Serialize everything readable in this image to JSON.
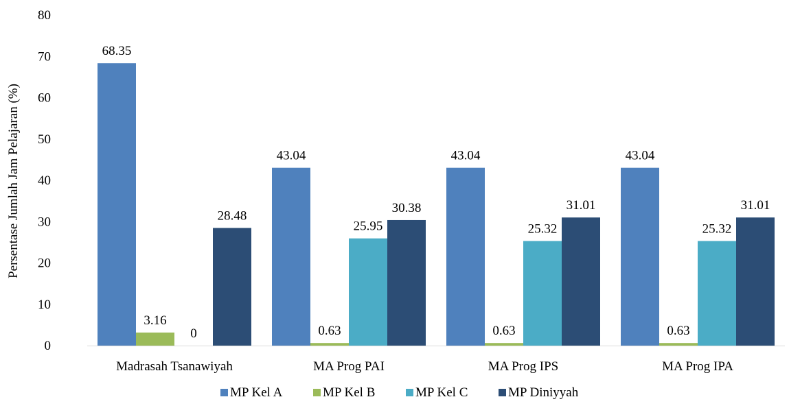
{
  "chart_data": {
    "type": "bar",
    "title": "",
    "xlabel": "",
    "ylabel": "Persentase Jumlah Jam Pelajaran (%)",
    "ylim": [
      0,
      80
    ],
    "yticks": [
      0,
      10,
      20,
      30,
      40,
      50,
      60,
      70,
      80
    ],
    "grid": false,
    "legend_position": "bottom",
    "categories": [
      "Madrasah Tsanawiyah",
      "MA Prog PAI",
      "MA Prog IPS",
      "MA Prog IPA"
    ],
    "series": [
      {
        "name": "MP Kel A",
        "color": "#4F81BD",
        "values": [
          68.35,
          43.04,
          43.04,
          43.04
        ],
        "labels": [
          "68.35",
          "43.04",
          "43.04",
          "43.04"
        ]
      },
      {
        "name": "MP Kel B",
        "color": "#9BBB59",
        "values": [
          3.16,
          0.63,
          0.63,
          0.63
        ],
        "labels": [
          "3.16",
          "0.63",
          "0.63",
          "0.63"
        ]
      },
      {
        "name": "MP Kel C",
        "color": "#4BACC6",
        "values": [
          0,
          25.95,
          25.32,
          25.32
        ],
        "labels": [
          "0",
          "25.95",
          "25.32",
          "25.32"
        ]
      },
      {
        "name": "MP Diniyyah",
        "color": "#2C4D75",
        "values": [
          28.48,
          30.38,
          31.01,
          31.01
        ],
        "labels": [
          "28.48",
          "30.38",
          "31.01",
          "31.01"
        ]
      }
    ]
  }
}
